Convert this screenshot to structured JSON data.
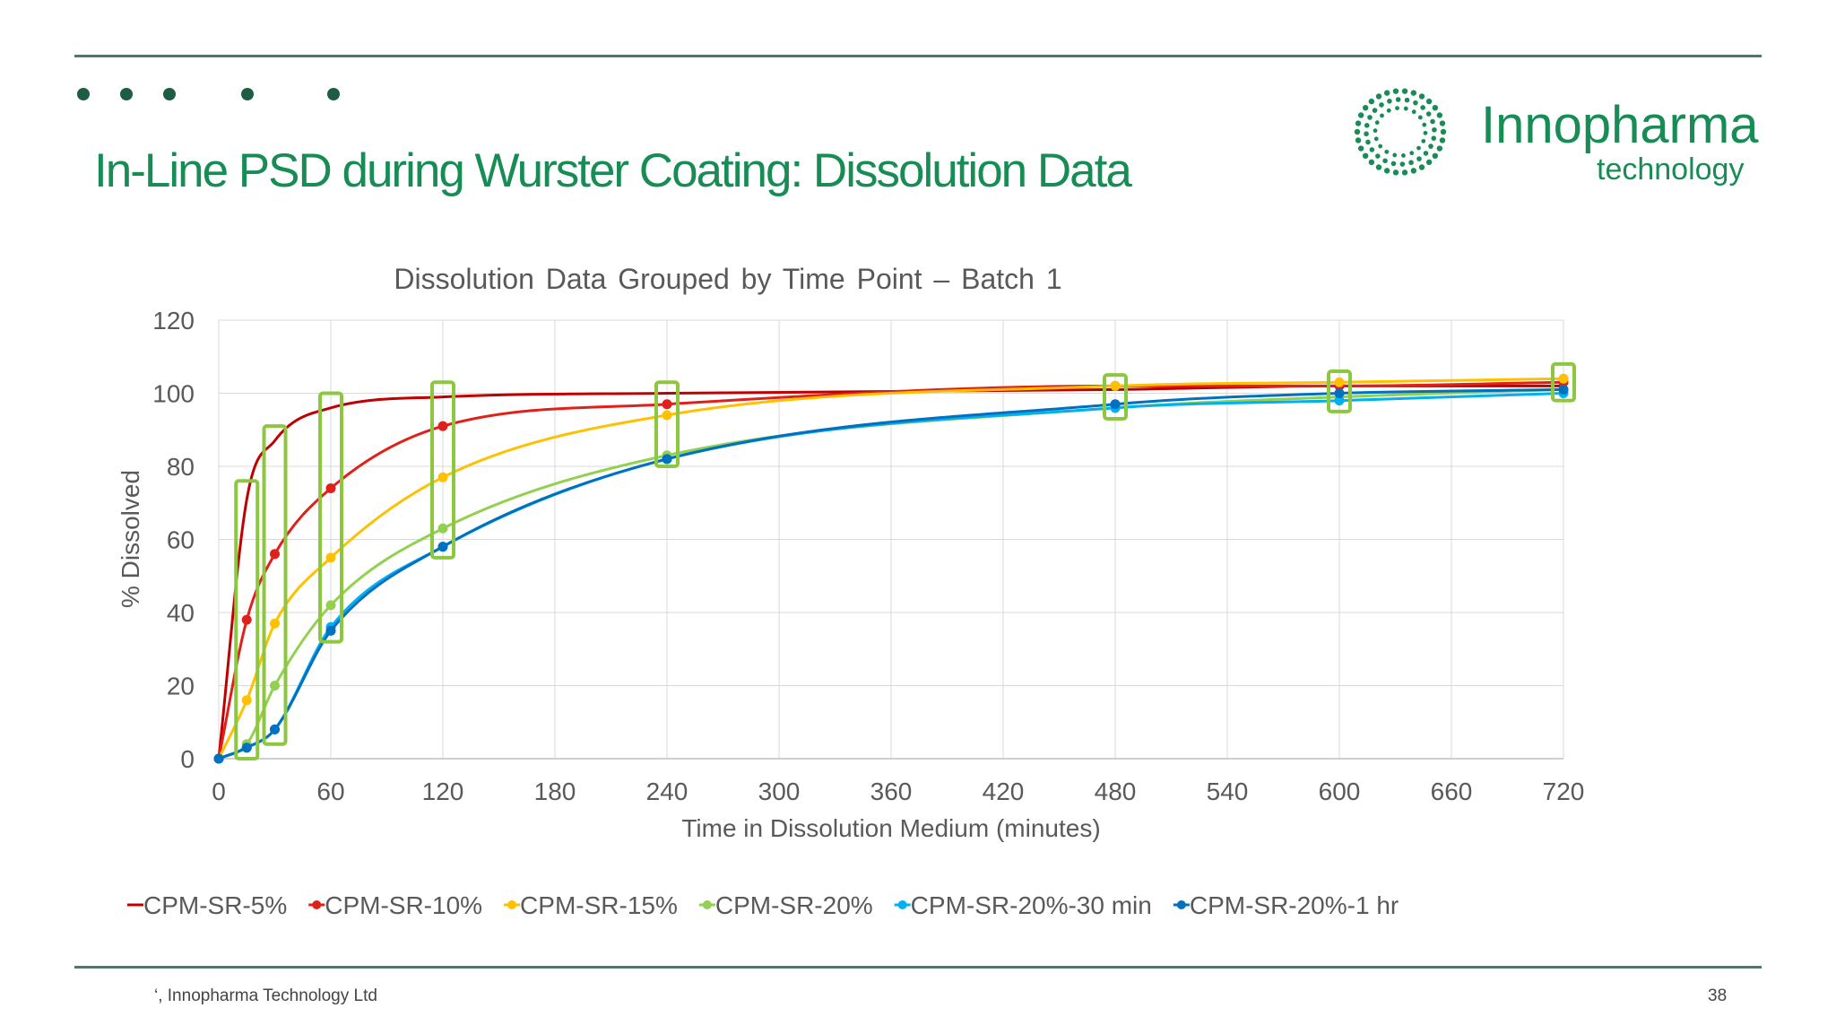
{
  "slide": {
    "title": "In-Line PSD during Wurster Coating: Dissolution Data",
    "footer": "‘, Innopharma Technology Ltd",
    "page_number": "38"
  },
  "logo": {
    "name": "Innopharma",
    "sub": "technology",
    "color": "#178c55"
  },
  "chart_data": {
    "type": "line",
    "title": "Dissolution Data Grouped by Time Point – Batch 1",
    "xlabel": "Time in Dissolution Medium (minutes)",
    "ylabel": "% Dissolved",
    "xlim": [
      0,
      720
    ],
    "ylim": [
      0,
      120
    ],
    "xticks": [
      0,
      60,
      120,
      180,
      240,
      300,
      360,
      420,
      480,
      540,
      600,
      660,
      720
    ],
    "yticks": [
      0,
      20,
      40,
      60,
      80,
      100,
      120
    ],
    "grid": true,
    "legend_position": "bottom",
    "x": [
      0,
      15,
      30,
      60,
      120,
      240,
      480,
      600,
      720
    ],
    "series": [
      {
        "name": "CPM-SR-5%",
        "color": "#c00000",
        "markers": false,
        "values": [
          0,
          71,
          87,
          96,
          99,
          100,
          101,
          102,
          102
        ]
      },
      {
        "name": "CPM-SR-10%",
        "color": "#e0201b",
        "markers": true,
        "values": [
          0,
          38,
          56,
          74,
          91,
          97,
          102,
          102,
          103
        ]
      },
      {
        "name": "CPM-SR-15%",
        "color": "#ffc000",
        "markers": true,
        "values": [
          0,
          16,
          37,
          55,
          77,
          94,
          102,
          103,
          104
        ]
      },
      {
        "name": "CPM-SR-20%",
        "color": "#92d050",
        "markers": true,
        "values": [
          0,
          4,
          20,
          42,
          63,
          83,
          96,
          99,
          101
        ]
      },
      {
        "name": "CPM-SR-20%-30 min",
        "color": "#00b0f0",
        "markers": true,
        "values": [
          0,
          3,
          8,
          36,
          58,
          82,
          96,
          98,
          100
        ]
      },
      {
        "name": "CPM-SR-20%-1 hr",
        "color": "#0070c0",
        "markers": true,
        "values": [
          0,
          3,
          8,
          35,
          58,
          82,
          97,
          100,
          101
        ]
      }
    ],
    "highlight_boxes": [
      {
        "x": 15,
        "y_range": [
          0,
          76
        ],
        "color": "#8dc63f"
      },
      {
        "x": 30,
        "y_range": [
          4,
          91
        ],
        "color": "#8dc63f"
      },
      {
        "x": 60,
        "y_range": [
          32,
          100
        ],
        "color": "#8dc63f"
      },
      {
        "x": 120,
        "y_range": [
          55,
          103
        ],
        "color": "#8dc63f"
      },
      {
        "x": 240,
        "y_range": [
          80,
          103
        ],
        "color": "#8dc63f"
      },
      {
        "x": 480,
        "y_range": [
          93,
          105
        ],
        "color": "#8dc63f"
      },
      {
        "x": 600,
        "y_range": [
          95,
          106
        ],
        "color": "#8dc63f"
      },
      {
        "x": 720,
        "y_range": [
          98,
          108
        ],
        "color": "#8dc63f"
      }
    ]
  }
}
